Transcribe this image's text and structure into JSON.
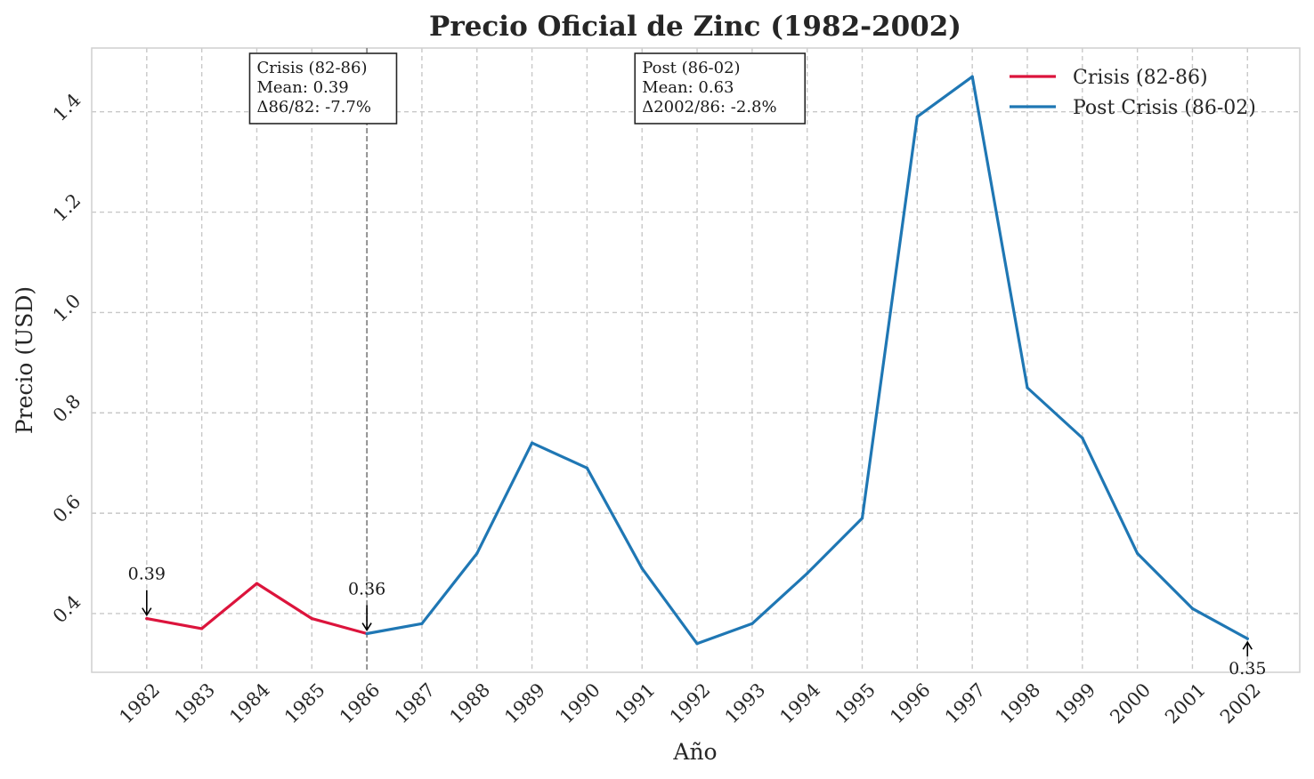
{
  "chart_data": {
    "type": "line",
    "title": "Precio Oficial de Zinc (1982-2002)",
    "xlabel": "Año",
    "ylabel": "Precio (USD)",
    "xlim": [
      1981.0,
      2002.95
    ],
    "ylim": [
      0.283,
      1.527
    ],
    "x_ticks": [
      1982,
      1983,
      1984,
      1985,
      1986,
      1987,
      1988,
      1989,
      1990,
      1991,
      1992,
      1993,
      1994,
      1995,
      1996,
      1997,
      1998,
      1999,
      2000,
      2001,
      2002
    ],
    "y_ticks": [
      0.4,
      0.6,
      0.8,
      1.0,
      1.2,
      1.4
    ],
    "y_tick_labels": [
      "0.4",
      "0.6",
      "0.8",
      "1.0",
      "1.2",
      "1.4"
    ],
    "grid": true,
    "legend_position": "top-right",
    "series": [
      {
        "name": "Crisis (82-86)",
        "color": "#dc143c",
        "x": [
          1982,
          1983,
          1984,
          1985,
          1986
        ],
        "values": [
          0.39,
          0.37,
          0.46,
          0.39,
          0.36
        ]
      },
      {
        "name": "Post Crisis (86-02)",
        "color": "#1f77b4",
        "x": [
          1986,
          1987,
          1988,
          1989,
          1990,
          1991,
          1992,
          1993,
          1994,
          1995,
          1996,
          1997,
          1998,
          1999,
          2000,
          2001,
          2002
        ],
        "values": [
          0.36,
          0.38,
          0.52,
          0.74,
          0.69,
          0.49,
          0.34,
          0.38,
          0.48,
          0.59,
          1.39,
          1.47,
          0.85,
          0.75,
          0.52,
          0.41,
          0.35
        ]
      }
    ],
    "vertical_line": {
      "x": 1986,
      "color": "#808080"
    },
    "annotations": [
      {
        "x": 1982,
        "y": 0.39,
        "text": "0.39",
        "placement": "above"
      },
      {
        "x": 1986,
        "y": 0.36,
        "text": "0.36",
        "placement": "above"
      },
      {
        "x": 2002,
        "y": 0.35,
        "text": "0.35",
        "placement": "below"
      }
    ],
    "text_boxes": [
      {
        "anchor_x": 1984.0,
        "lines": [
          "Crisis (82-86)",
          "Mean: 0.39",
          "Δ86/82: -7.7%"
        ]
      },
      {
        "anchor_x": 1991.0,
        "lines": [
          "Post (86-02)",
          "Mean: 0.63",
          "Δ2002/86: -2.8%"
        ]
      }
    ]
  }
}
